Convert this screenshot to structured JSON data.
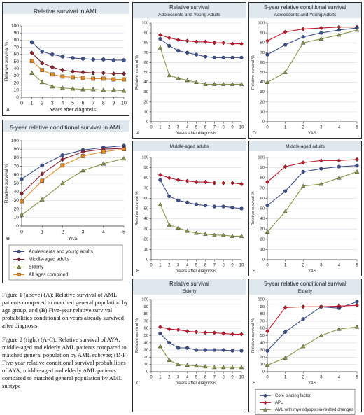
{
  "colors": {
    "blue": "#3d4f8a",
    "maroon": "#8a2230",
    "red": "#c0172a",
    "olive": "#8a934a",
    "orange": "#e08a2a",
    "grid": "#d6dce4",
    "axis": "#333333",
    "panel_title_bg": "#dfe7ef"
  },
  "captions": {
    "fig1": "Figure 1 (above) (A): Relative survival of AML patients compared to matched general population by age group, and (B) Five-year relative survival probabilities conditional on years already survived after diagnosis",
    "fig2": "Figure 2 (right) (A-C): Relative survival of AYA, middle-aged and elderly AML patients compared to matched general population by AML subtype; (D-F) Five-year relative conditional survival probabilities of AYA, middle-aged and elderly AML patients compared to matched general population by AML subtype"
  },
  "chart_data": [
    {
      "id": "fig1A",
      "type": "line",
      "panel_letter": "A",
      "title": "Relative survival in AML",
      "subtitle": "",
      "xlabel": "Years after diagnosis",
      "ylabel": "Relative survival %",
      "x": [
        1,
        2,
        3,
        4,
        5,
        6,
        7,
        8,
        9,
        10
      ],
      "xlim": [
        0,
        10
      ],
      "ylim": [
        0,
        100
      ],
      "xticks": [
        0,
        1,
        2,
        3,
        4,
        5,
        6,
        7,
        8,
        9,
        10
      ],
      "yticks": [
        0,
        10,
        20,
        30,
        40,
        50,
        60,
        70,
        80,
        90,
        100
      ],
      "series": [
        {
          "color_key": "blue",
          "marker": "circle",
          "values": [
            77,
            64,
            60,
            57,
            55,
            54,
            53,
            53,
            52,
            52
          ]
        },
        {
          "color_key": "maroon",
          "marker": "diamond",
          "values": [
            62,
            48,
            42,
            38,
            36,
            35,
            34,
            34,
            33,
            33
          ]
        },
        {
          "color_key": "orange",
          "marker": "square",
          "values": [
            51,
            38,
            32,
            29,
            28,
            27,
            26,
            26,
            25,
            25
          ]
        },
        {
          "color_key": "olive",
          "marker": "triangle",
          "values": [
            34,
            21,
            15,
            13,
            12,
            11,
            11,
            10,
            10,
            9
          ]
        }
      ]
    },
    {
      "id": "fig1B",
      "type": "line",
      "panel_letter": "B",
      "title": "5-year relative conditional survival in AML",
      "subtitle": "",
      "xlabel": "YAS",
      "ylabel": "Relative survival %",
      "x": [
        0,
        1,
        2,
        3,
        4,
        5
      ],
      "xlim": [
        0,
        5
      ],
      "ylim": [
        0,
        100
      ],
      "xticks": [
        0,
        1,
        2,
        3,
        4,
        5
      ],
      "yticks": [
        0,
        10,
        20,
        30,
        40,
        50,
        60,
        70,
        80,
        90,
        100
      ],
      "legend_position": "bottom",
      "series": [
        {
          "name": "Adolescents and young adults",
          "color_key": "blue",
          "marker": "circle",
          "values": [
            55,
            71,
            83,
            89,
            92,
            94
          ]
        },
        {
          "name": "Middle-aged adults",
          "color_key": "maroon",
          "marker": "diamond",
          "values": [
            38,
            61,
            78,
            87,
            90,
            91
          ]
        },
        {
          "name": "Elderly",
          "color_key": "olive",
          "marker": "triangle",
          "values": [
            13,
            31,
            50,
            65,
            73,
            79
          ]
        },
        {
          "name": "All ages combined",
          "color_key": "orange",
          "marker": "square",
          "values": [
            29,
            53,
            71,
            82,
            87,
            90
          ]
        }
      ]
    },
    {
      "id": "fig2A",
      "type": "line",
      "panel_letter": "A",
      "title": "Relative survival",
      "subtitle": "Adolescents and Young Adults",
      "xlabel": "Years after diagnosis",
      "ylabel": "Relative survival %",
      "x": [
        1,
        2,
        3,
        4,
        5,
        6,
        7,
        8,
        9,
        10
      ],
      "xlim": [
        0,
        10
      ],
      "ylim": [
        0,
        100
      ],
      "xticks": [
        0,
        1,
        2,
        3,
        4,
        5,
        6,
        7,
        8,
        9,
        10
      ],
      "yticks": [
        0,
        10,
        20,
        30,
        40,
        50,
        60,
        70,
        80,
        90,
        100
      ],
      "series": [
        {
          "color_key": "red",
          "marker": "diamond",
          "values": [
            88,
            85,
            83,
            82,
            81,
            81,
            80,
            80,
            79,
            79
          ]
        },
        {
          "color_key": "blue",
          "marker": "circle",
          "values": [
            84,
            77,
            72,
            70,
            68,
            66,
            65,
            65,
            65,
            65
          ]
        },
        {
          "color_key": "olive",
          "marker": "triangle",
          "values": [
            75,
            47,
            44,
            42,
            40,
            38,
            38,
            38,
            38,
            38
          ]
        }
      ]
    },
    {
      "id": "fig2D",
      "type": "line",
      "panel_letter": "D",
      "title": "5-year relative conditional survival",
      "subtitle": "Adolescents and Young Adults",
      "xlabel": "YAS",
      "ylabel": "Relative survival %",
      "x": [
        0,
        1,
        2,
        3,
        4,
        5
      ],
      "xlim": [
        0,
        5
      ],
      "ylim": [
        0,
        100
      ],
      "xticks": [
        0,
        1,
        2,
        3,
        4,
        5
      ],
      "yticks": [
        0,
        10,
        20,
        30,
        40,
        50,
        60,
        70,
        80,
        90,
        100
      ],
      "series": [
        {
          "color_key": "red",
          "marker": "diamond",
          "values": [
            82,
            91,
            94,
            95,
            96,
            96
          ]
        },
        {
          "color_key": "blue",
          "marker": "circle",
          "values": [
            68,
            78,
            86,
            90,
            93,
            95
          ]
        },
        {
          "color_key": "olive",
          "marker": "triangle",
          "values": [
            40,
            50,
            80,
            84,
            88,
            93
          ]
        }
      ]
    },
    {
      "id": "fig2B",
      "type": "line",
      "panel_letter": "B",
      "title": "",
      "subtitle": "Middle-aged adults",
      "xlabel": "Years after diagnosis",
      "ylabel": "Relative survival %",
      "x": [
        1,
        2,
        3,
        4,
        5,
        6,
        7,
        8,
        9,
        10
      ],
      "xlim": [
        0,
        10
      ],
      "ylim": [
        0,
        100
      ],
      "xticks": [
        0,
        1,
        2,
        3,
        4,
        5,
        6,
        7,
        8,
        9,
        10
      ],
      "yticks": [
        0,
        10,
        20,
        30,
        40,
        50,
        60,
        70,
        80,
        90,
        100
      ],
      "series": [
        {
          "color_key": "red",
          "marker": "diamond",
          "values": [
            83,
            80,
            78,
            77,
            76,
            76,
            75,
            75,
            75,
            74
          ]
        },
        {
          "color_key": "blue",
          "marker": "circle",
          "values": [
            78,
            62,
            58,
            56,
            54,
            53,
            52,
            52,
            51,
            50
          ]
        },
        {
          "color_key": "olive",
          "marker": "triangle",
          "values": [
            54,
            34,
            31,
            28,
            26,
            25,
            24,
            24,
            23,
            23
          ]
        }
      ]
    },
    {
      "id": "fig2E",
      "type": "line",
      "panel_letter": "E",
      "title": "",
      "subtitle": "Middle-aged adults",
      "xlabel": "YAS",
      "ylabel": "Relative survival %",
      "x": [
        0,
        1,
        2,
        3,
        4,
        5
      ],
      "xlim": [
        0,
        5
      ],
      "ylim": [
        0,
        100
      ],
      "xticks": [
        0,
        1,
        2,
        3,
        4,
        5
      ],
      "yticks": [
        0,
        10,
        20,
        30,
        40,
        50,
        60,
        70,
        80,
        90,
        100
      ],
      "series": [
        {
          "color_key": "red",
          "marker": "diamond",
          "values": [
            76,
            91,
            95,
            97,
            97,
            98
          ]
        },
        {
          "color_key": "blue",
          "marker": "circle",
          "values": [
            53,
            67,
            86,
            89,
            91,
            92
          ]
        },
        {
          "color_key": "olive",
          "marker": "triangle",
          "values": [
            27,
            47,
            72,
            74,
            80,
            86
          ]
        }
      ]
    },
    {
      "id": "fig2C",
      "type": "line",
      "panel_letter": "C",
      "title": "Relative survival",
      "subtitle": "Elderly",
      "xlabel": "Years after diagnosis",
      "ylabel": "Relative survival %",
      "x": [
        1,
        2,
        3,
        4,
        5,
        6,
        7,
        8,
        9,
        10
      ],
      "xlim": [
        0,
        10
      ],
      "ylim": [
        0,
        100
      ],
      "xticks": [
        0,
        1,
        2,
        3,
        4,
        5,
        6,
        7,
        8,
        9,
        10
      ],
      "yticks": [
        0,
        10,
        20,
        30,
        40,
        50,
        60,
        70,
        80,
        90,
        100
      ],
      "series": [
        {
          "color_key": "red",
          "marker": "diamond",
          "values": [
            62,
            59,
            58,
            56,
            55,
            54,
            54,
            53,
            52,
            52
          ]
        },
        {
          "color_key": "blue",
          "marker": "circle",
          "values": [
            53,
            40,
            33,
            33,
            30,
            30,
            30,
            30,
            29,
            29
          ]
        },
        {
          "color_key": "olive",
          "marker": "triangle",
          "values": [
            35,
            16,
            10,
            9,
            8,
            7,
            6,
            6,
            6,
            6
          ]
        }
      ]
    },
    {
      "id": "fig2F",
      "type": "line",
      "panel_letter": "F",
      "title": "5-year relative conditional survival",
      "subtitle": "Elderly",
      "xlabel": "YAS",
      "ylabel": "Relative survival %",
      "x": [
        0,
        1,
        2,
        3,
        4,
        5
      ],
      "xlim": [
        0,
        5
      ],
      "ylim": [
        0,
        100
      ],
      "xticks": [
        0,
        1,
        2,
        3,
        4,
        5
      ],
      "yticks": [
        0,
        10,
        20,
        30,
        40,
        50,
        60,
        70,
        80,
        90,
        100
      ],
      "legend_position": "bottom",
      "series": [
        {
          "name": "Core binding factor",
          "color_key": "blue",
          "marker": "circle",
          "values": [
            29,
            55,
            73,
            90,
            88,
            97
          ]
        },
        {
          "name": "APL",
          "color_key": "red",
          "marker": "diamond",
          "values": [
            56,
            89,
            90,
            90,
            91,
            92
          ]
        },
        {
          "name": "AML with myelodysplasia-related changes",
          "color_key": "olive",
          "marker": "triangle",
          "values": [
            9,
            19,
            35,
            50,
            59,
            62
          ]
        }
      ]
    }
  ]
}
